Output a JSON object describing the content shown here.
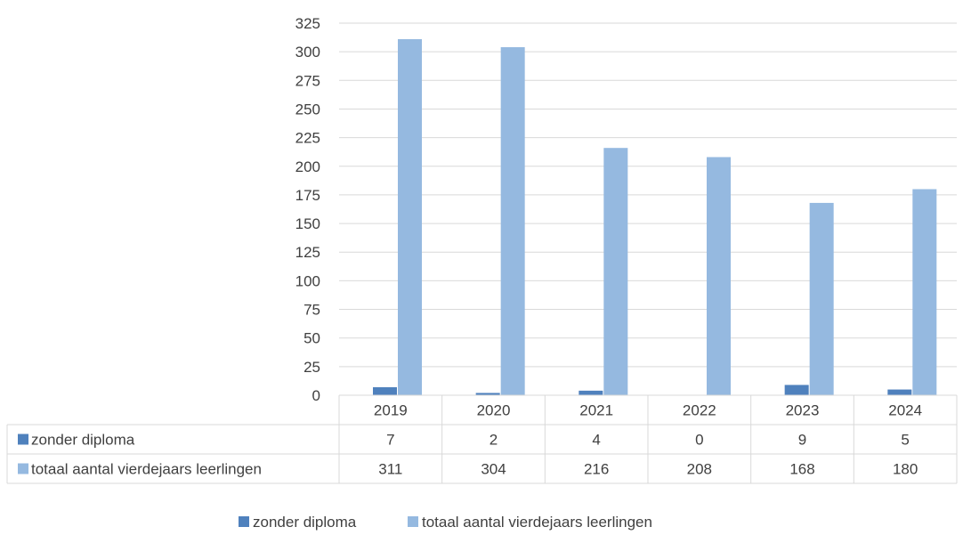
{
  "chart_data": {
    "type": "bar",
    "categories": [
      "2019",
      "2020",
      "2021",
      "2022",
      "2023",
      "2024"
    ],
    "series": [
      {
        "name": "zonder diploma",
        "values": [
          7,
          2,
          4,
          0,
          9,
          5
        ],
        "color": "#4f81bd"
      },
      {
        "name": "totaal aantal vierdejaars leerlingen",
        "values": [
          311,
          304,
          216,
          208,
          168,
          180
        ],
        "color": "#95b9e0"
      }
    ],
    "ylim": [
      0,
      325
    ],
    "y_ticks": [
      0,
      25,
      50,
      75,
      100,
      125,
      150,
      175,
      200,
      225,
      250,
      275,
      300,
      325
    ],
    "grid": true,
    "data_table": true,
    "legend": "bottom",
    "colors": {
      "grid": "#d9d9d9",
      "text": "#404040",
      "table_border": "#d9d9d9"
    }
  }
}
